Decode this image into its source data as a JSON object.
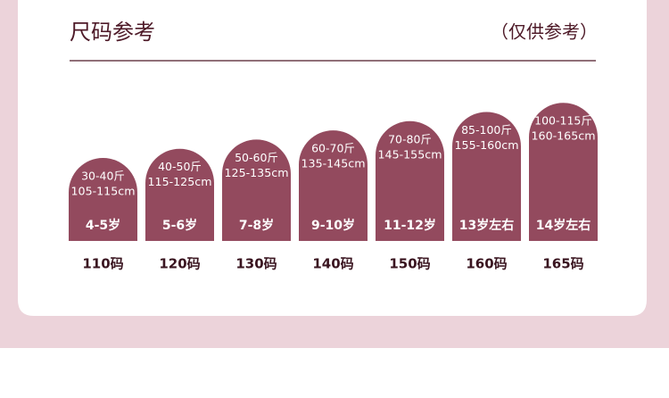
{
  "header": {
    "title": "尺码参考",
    "note": "（仅供参考）"
  },
  "items": [
    {
      "weight": "30-40斤",
      "height": "105-115cm",
      "age": "4-5岁",
      "size": "110码"
    },
    {
      "weight": "40-50斤",
      "height": "115-125cm",
      "age": "5-6岁",
      "size": "120码"
    },
    {
      "weight": "50-60斤",
      "height": "125-135cm",
      "age": "7-8岁",
      "size": "130码"
    },
    {
      "weight": "60-70斤",
      "height": "135-145cm",
      "age": "9-10岁",
      "size": "140码"
    },
    {
      "weight": "70-80斤",
      "height": "145-155cm",
      "age": "11-12岁",
      "size": "150码"
    },
    {
      "weight": "85-100斤",
      "height": "155-160cm",
      "age": "13岁左右",
      "size": "160码"
    },
    {
      "weight": "100-115斤",
      "height": "160-165cm",
      "age": "14岁左右",
      "size": "165码"
    }
  ]
}
